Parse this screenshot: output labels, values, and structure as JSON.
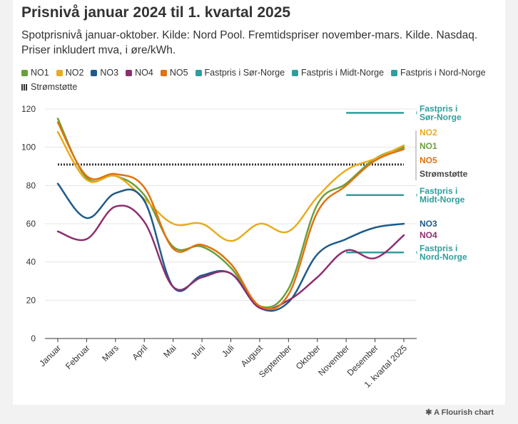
{
  "title": "Prisnivå januar 2024 til 1. kvartal 2025",
  "subtitle": "Spotprisnivå januar-oktober. Kilde: Nord Pool. Fremtidspriser november-mars. Kilde. Nasdaq. Priser inkludert mva, i øre/kWh.",
  "footer": "A Flourish chart",
  "footer_icon": "flourish-asterisk-icon",
  "legend": [
    {
      "label": "NO1",
      "color": "#6a9f3a",
      "style": "solid"
    },
    {
      "label": "NO2",
      "color": "#e8ac1c",
      "style": "solid"
    },
    {
      "label": "NO3",
      "color": "#1f5a8a",
      "style": "solid"
    },
    {
      "label": "NO4",
      "color": "#8c2f6f",
      "style": "solid"
    },
    {
      "label": "NO5",
      "color": "#e0720f",
      "style": "solid"
    },
    {
      "label": "Fastpris i Sør-Norge",
      "color": "#2e9e9c",
      "style": "solid"
    },
    {
      "label": "Fastpris i Midt-Norge",
      "color": "#2e9e9c",
      "style": "solid"
    },
    {
      "label": "Fastpris i Nord-Norge",
      "color": "#2e9e9c",
      "style": "solid"
    },
    {
      "label": "Strømstøtte",
      "color": "#333333",
      "style": "dotted"
    }
  ],
  "chart_data": {
    "type": "line",
    "categories": [
      "Januar",
      "Februar",
      "Mars",
      "April",
      "Mai",
      "Juni",
      "Juli",
      "August",
      "September",
      "Oktober",
      "November",
      "Desember",
      "1. kvartal 2025"
    ],
    "ylim": [
      0,
      120
    ],
    "yticks": [
      0,
      20,
      40,
      60,
      80,
      100,
      120
    ],
    "grid": true,
    "series": [
      {
        "name": "NO1",
        "color": "#6a9f3a",
        "values": [
          115,
          84,
          85,
          75,
          48,
          48,
          37,
          17,
          26,
          70,
          81,
          94,
          100
        ]
      },
      {
        "name": "NO2",
        "color": "#e8ac1c",
        "values": [
          108,
          83,
          85,
          73,
          60,
          60,
          51,
          60,
          56,
          74,
          88,
          94,
          101
        ]
      },
      {
        "name": "NO3",
        "color": "#1f5a8a",
        "values": [
          81,
          63,
          76,
          72,
          27,
          33,
          34,
          16,
          19,
          44,
          52,
          58,
          60
        ]
      },
      {
        "name": "NO4",
        "color": "#8c2f6f",
        "values": [
          56,
          52,
          69,
          61,
          27,
          32,
          34,
          16,
          20,
          32,
          46,
          42,
          54
        ]
      },
      {
        "name": "NO5",
        "color": "#e0720f",
        "values": [
          113,
          85,
          86,
          79,
          47,
          49,
          39,
          17,
          23,
          66,
          80,
          93,
          99
        ]
      }
    ],
    "reference_lines": [
      {
        "name": "Fastpris i Sør-Norge",
        "value": 118,
        "x_from": "November",
        "x_to": "1. kvartal 2025",
        "color": "#2e9e9c",
        "label_lines": [
          "Fastpris i",
          "Sør-Norge"
        ]
      },
      {
        "name": "Fastpris i Midt-Norge",
        "value": 75,
        "x_from": "November",
        "x_to": "1. kvartal 2025",
        "color": "#2e9e9c",
        "label_lines": [
          "Fastpris i",
          "Midt-Norge"
        ]
      },
      {
        "name": "Fastpris i Nord-Norge",
        "value": 45,
        "x_from": "November",
        "x_to": "1. kvartal 2025",
        "color": "#2e9e9c",
        "label_lines": [
          "Fastpris i",
          "Nord-Norge"
        ]
      },
      {
        "name": "Strømstøtte",
        "value": 91,
        "x_from": "Januar",
        "x_to": "1. kvartal 2025",
        "color": "#333333",
        "style": "dotted",
        "label_lines": [
          "Strømstøtte"
        ]
      }
    ],
    "end_labels": [
      {
        "text": "NO2",
        "color": "#e8ac1c"
      },
      {
        "text": "NO1",
        "color": "#6a9f3a"
      },
      {
        "text": "NO5",
        "color": "#e0720f"
      },
      {
        "text": "Strømstøtte",
        "color": "#444444"
      },
      {
        "text": "NO3",
        "color": "#1f5a8a"
      },
      {
        "text": "NO4",
        "color": "#8c2f6f"
      }
    ]
  }
}
